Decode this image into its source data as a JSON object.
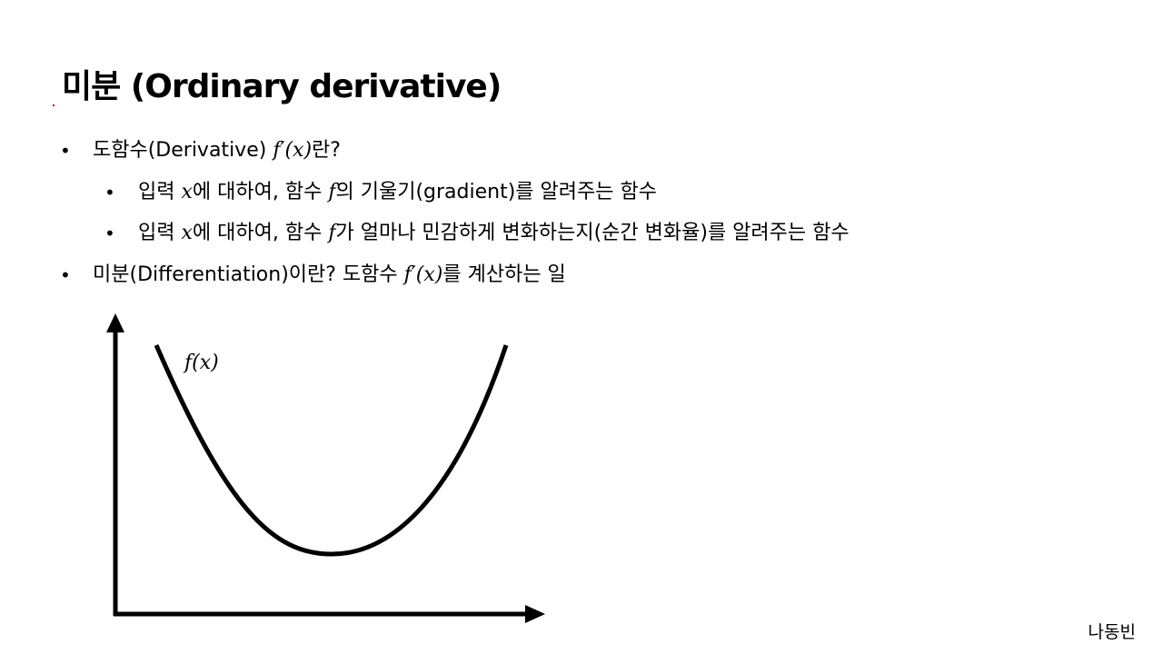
{
  "title": "미분 (Ordinary derivative)",
  "bullets": {
    "b1": {
      "pre": "도함수(Derivative) ",
      "math": "f′(x)",
      "post": "란?"
    },
    "b2": {
      "pre": "입력 ",
      "math1": "x",
      "mid": "에 대하여, 함수 ",
      "math2": "f",
      "post": "의 기울기(gradient)를 알려주는 함수"
    },
    "b3": {
      "pre": "입력 ",
      "math1": "x",
      "mid": "에 대하여, 함수 ",
      "math2": "f",
      "post": "가 얼마나 민감하게 변화하는지(순간 변화율)를 알려주는 함수"
    },
    "b4": {
      "pre": "미분(Differentiation)이란? 도함수 ",
      "math": "f′(x)",
      "post": "를 계산하는 일"
    },
    "bullet_symbol": "•"
  },
  "graph": {
    "curve_label": "f(x)"
  },
  "footer": {
    "author": "나동빈"
  }
}
